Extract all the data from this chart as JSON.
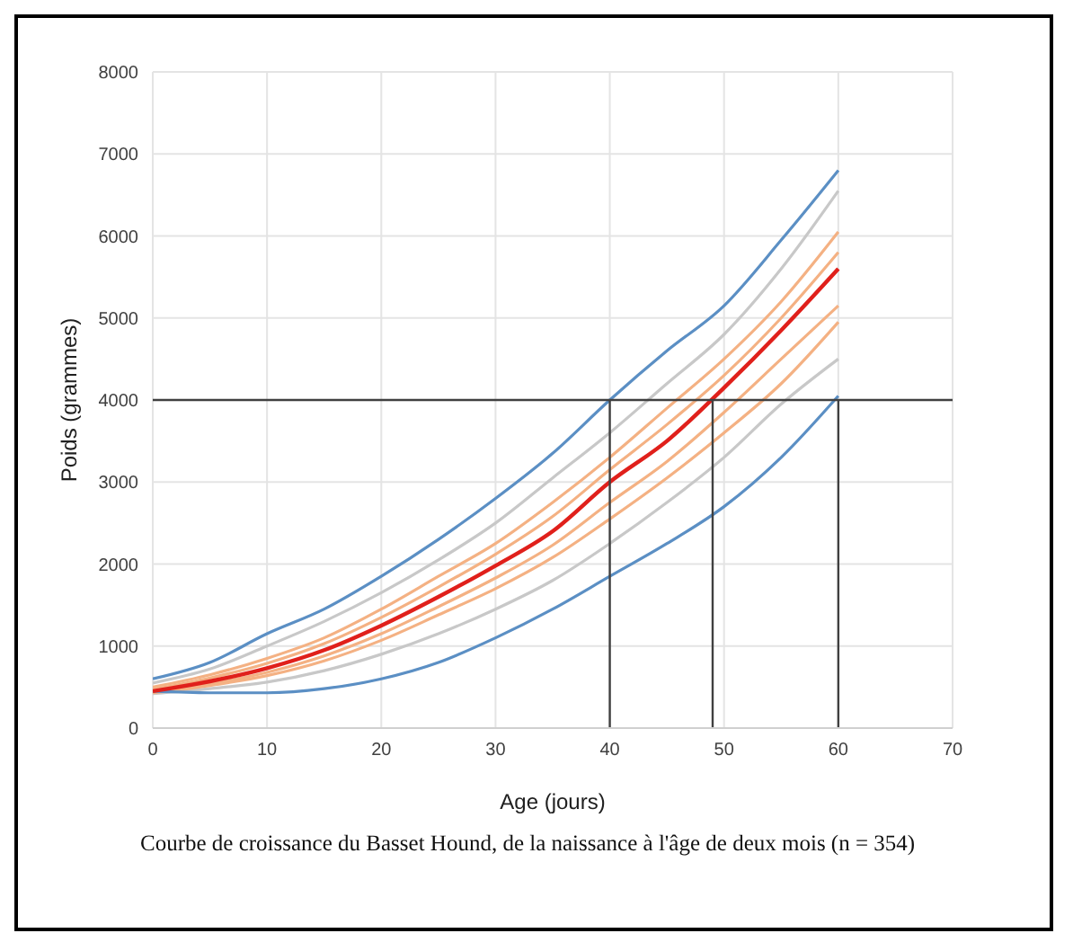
{
  "chart_data": {
    "type": "line",
    "xlabel": "Age (jours)",
    "ylabel": "Poids (grammes)",
    "annotations": [
      "Courbe de croissance du Basset Hound, de la naissance à l'âge de deux mois (n = 354)"
    ],
    "x": [
      0,
      5,
      10,
      15,
      20,
      25,
      30,
      35,
      40,
      45,
      50,
      55,
      60
    ],
    "series": [
      {
        "color": "#c8c8c8",
        "values": [
          420,
          480,
          560,
          700,
          900,
          1150,
          1450,
          1800,
          2250,
          2750,
          3300,
          3950,
          4500
        ]
      },
      {
        "color": "#c8c8c8",
        "values": [
          550,
          720,
          1000,
          1300,
          1650,
          2050,
          2500,
          3050,
          3600,
          4200,
          4800,
          5600,
          6550
        ]
      },
      {
        "color": "#f4b183",
        "values": [
          430,
          520,
          640,
          820,
          1070,
          1380,
          1700,
          2080,
          2550,
          3050,
          3600,
          4200,
          4950
        ]
      },
      {
        "color": "#f4b183",
        "values": [
          440,
          540,
          680,
          880,
          1150,
          1480,
          1830,
          2230,
          2750,
          3250,
          3850,
          4500,
          5150
        ]
      },
      {
        "color": "#f4b183",
        "values": [
          470,
          610,
          790,
          1030,
          1350,
          1720,
          2120,
          2580,
          3150,
          3700,
          4300,
          5000,
          5800
        ]
      },
      {
        "color": "#f4b183",
        "values": [
          500,
          650,
          850,
          1100,
          1450,
          1850,
          2250,
          2750,
          3300,
          3900,
          4500,
          5200,
          6050
        ]
      },
      {
        "color": "#5b8fc4",
        "values": [
          600,
          800,
          1150,
          1450,
          1850,
          2300,
          2800,
          3350,
          4000,
          4600,
          5150,
          5950,
          6800
        ]
      },
      {
        "color": "#5b8fc4",
        "values": [
          450,
          430,
          430,
          480,
          600,
          800,
          1100,
          1450,
          1850,
          2250,
          2700,
          3300,
          4050
        ]
      },
      {
        "color": "#e0201b",
        "values": [
          450,
          570,
          730,
          950,
          1250,
          1600,
          1980,
          2400,
          3000,
          3500,
          4150,
          4850,
          5600
        ]
      }
    ],
    "xlim": [
      0,
      70
    ],
    "xticks": [
      0,
      10,
      20,
      30,
      40,
      50,
      60,
      70
    ],
    "ylim": [
      0,
      8000
    ],
    "yticks": [
      0,
      1000,
      2000,
      3000,
      4000,
      5000,
      6000,
      7000,
      8000
    ],
    "ref_lines": [
      {
        "axis": "y",
        "value": 4000,
        "color": "#404040"
      },
      {
        "axis": "x",
        "value": 40,
        "color": "#404040"
      },
      {
        "axis": "x",
        "value": 49,
        "color": "#404040"
      },
      {
        "axis": "x",
        "value": 60,
        "color": "#404040"
      }
    ],
    "grid": true,
    "legend": false,
    "marker": "none",
    "line_style": "solid"
  }
}
